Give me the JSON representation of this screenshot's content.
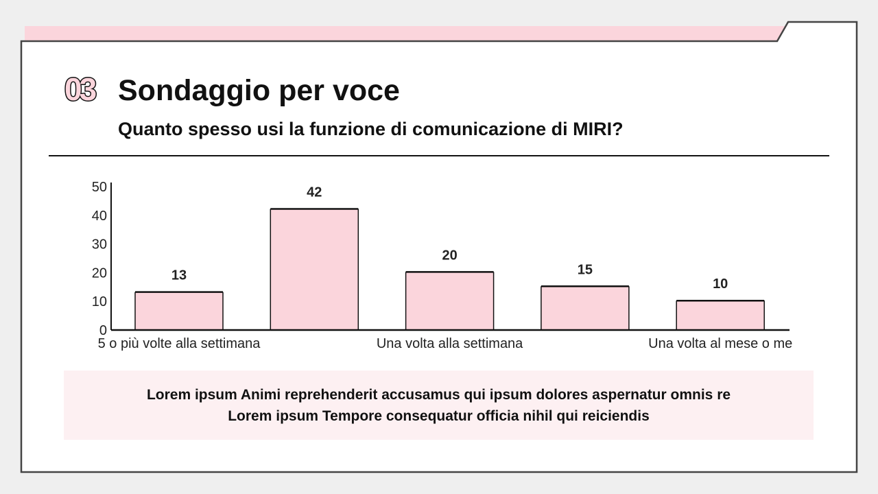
{
  "header": {
    "section_number": "03",
    "title": "Sondaggio per voce",
    "subtitle": "Quanto spesso usi la funzione di comunicazione di MIRI?"
  },
  "colors": {
    "accent": "#fbd5dc",
    "frame": "#444444",
    "note_bg": "#fdf0f2"
  },
  "chart_data": {
    "type": "bar",
    "categories": [
      "5 o più volte alla settimana",
      "",
      "Una volta alla settimana",
      "",
      "Una volta al mese o me"
    ],
    "values": [
      13,
      42,
      20,
      15,
      10
    ],
    "data_labels": [
      "13",
      "42",
      "20",
      "15",
      "10"
    ],
    "ylim": [
      0,
      50
    ],
    "yticks": [
      "0",
      "10",
      "20",
      "30",
      "40",
      "50"
    ],
    "grid": false,
    "bar_color": "#fbd5dc"
  },
  "note": {
    "line1": "Lorem ipsum Animi reprehenderit accusamus qui ipsum dolores aspernatur omnis re",
    "line2": "Lorem ipsum Tempore consequatur officia nihil qui reiciendis"
  }
}
